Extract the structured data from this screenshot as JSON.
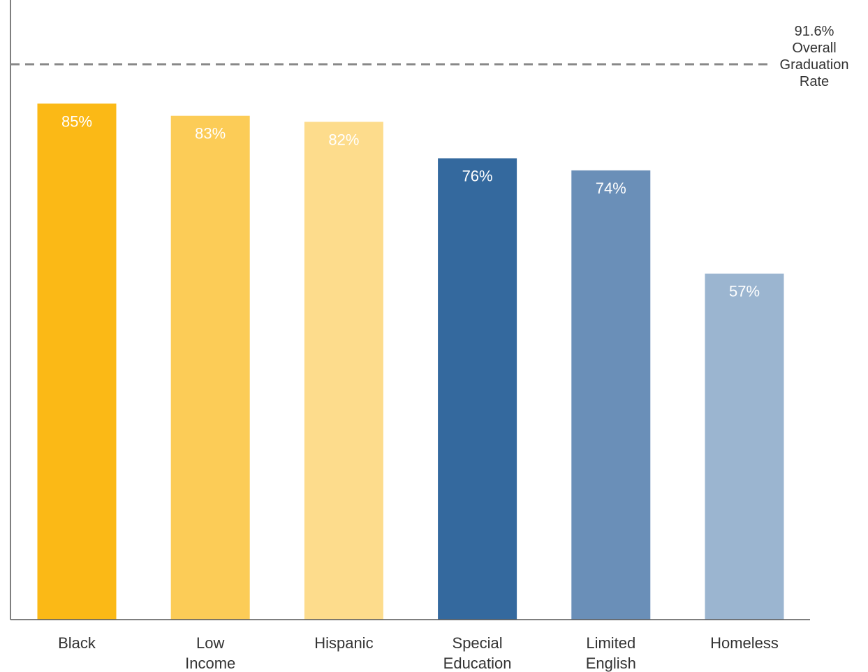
{
  "chart_data": {
    "type": "bar",
    "categories": [
      [
        "Black"
      ],
      [
        "Low",
        "Income"
      ],
      [
        "Hispanic"
      ],
      [
        "Special",
        "Education"
      ],
      [
        "Limited",
        "English"
      ],
      [
        "Homeless"
      ]
    ],
    "values": [
      85,
      83,
      82,
      76,
      74,
      57
    ],
    "value_labels": [
      "85%",
      "83%",
      "82%",
      "76%",
      "74%",
      "57%"
    ],
    "colors": [
      "#fbb916",
      "#fccc57",
      "#fddc8c",
      "#34699e",
      "#6a8fb8",
      "#9bb5d0"
    ],
    "reference_line": {
      "value": 91.6,
      "label_lines": [
        "91.6%",
        "Overall",
        "Graduation",
        "Rate"
      ],
      "color": "#888888"
    },
    "ylim": [
      0,
      100
    ],
    "grid": false,
    "axis_color": "#555555"
  }
}
